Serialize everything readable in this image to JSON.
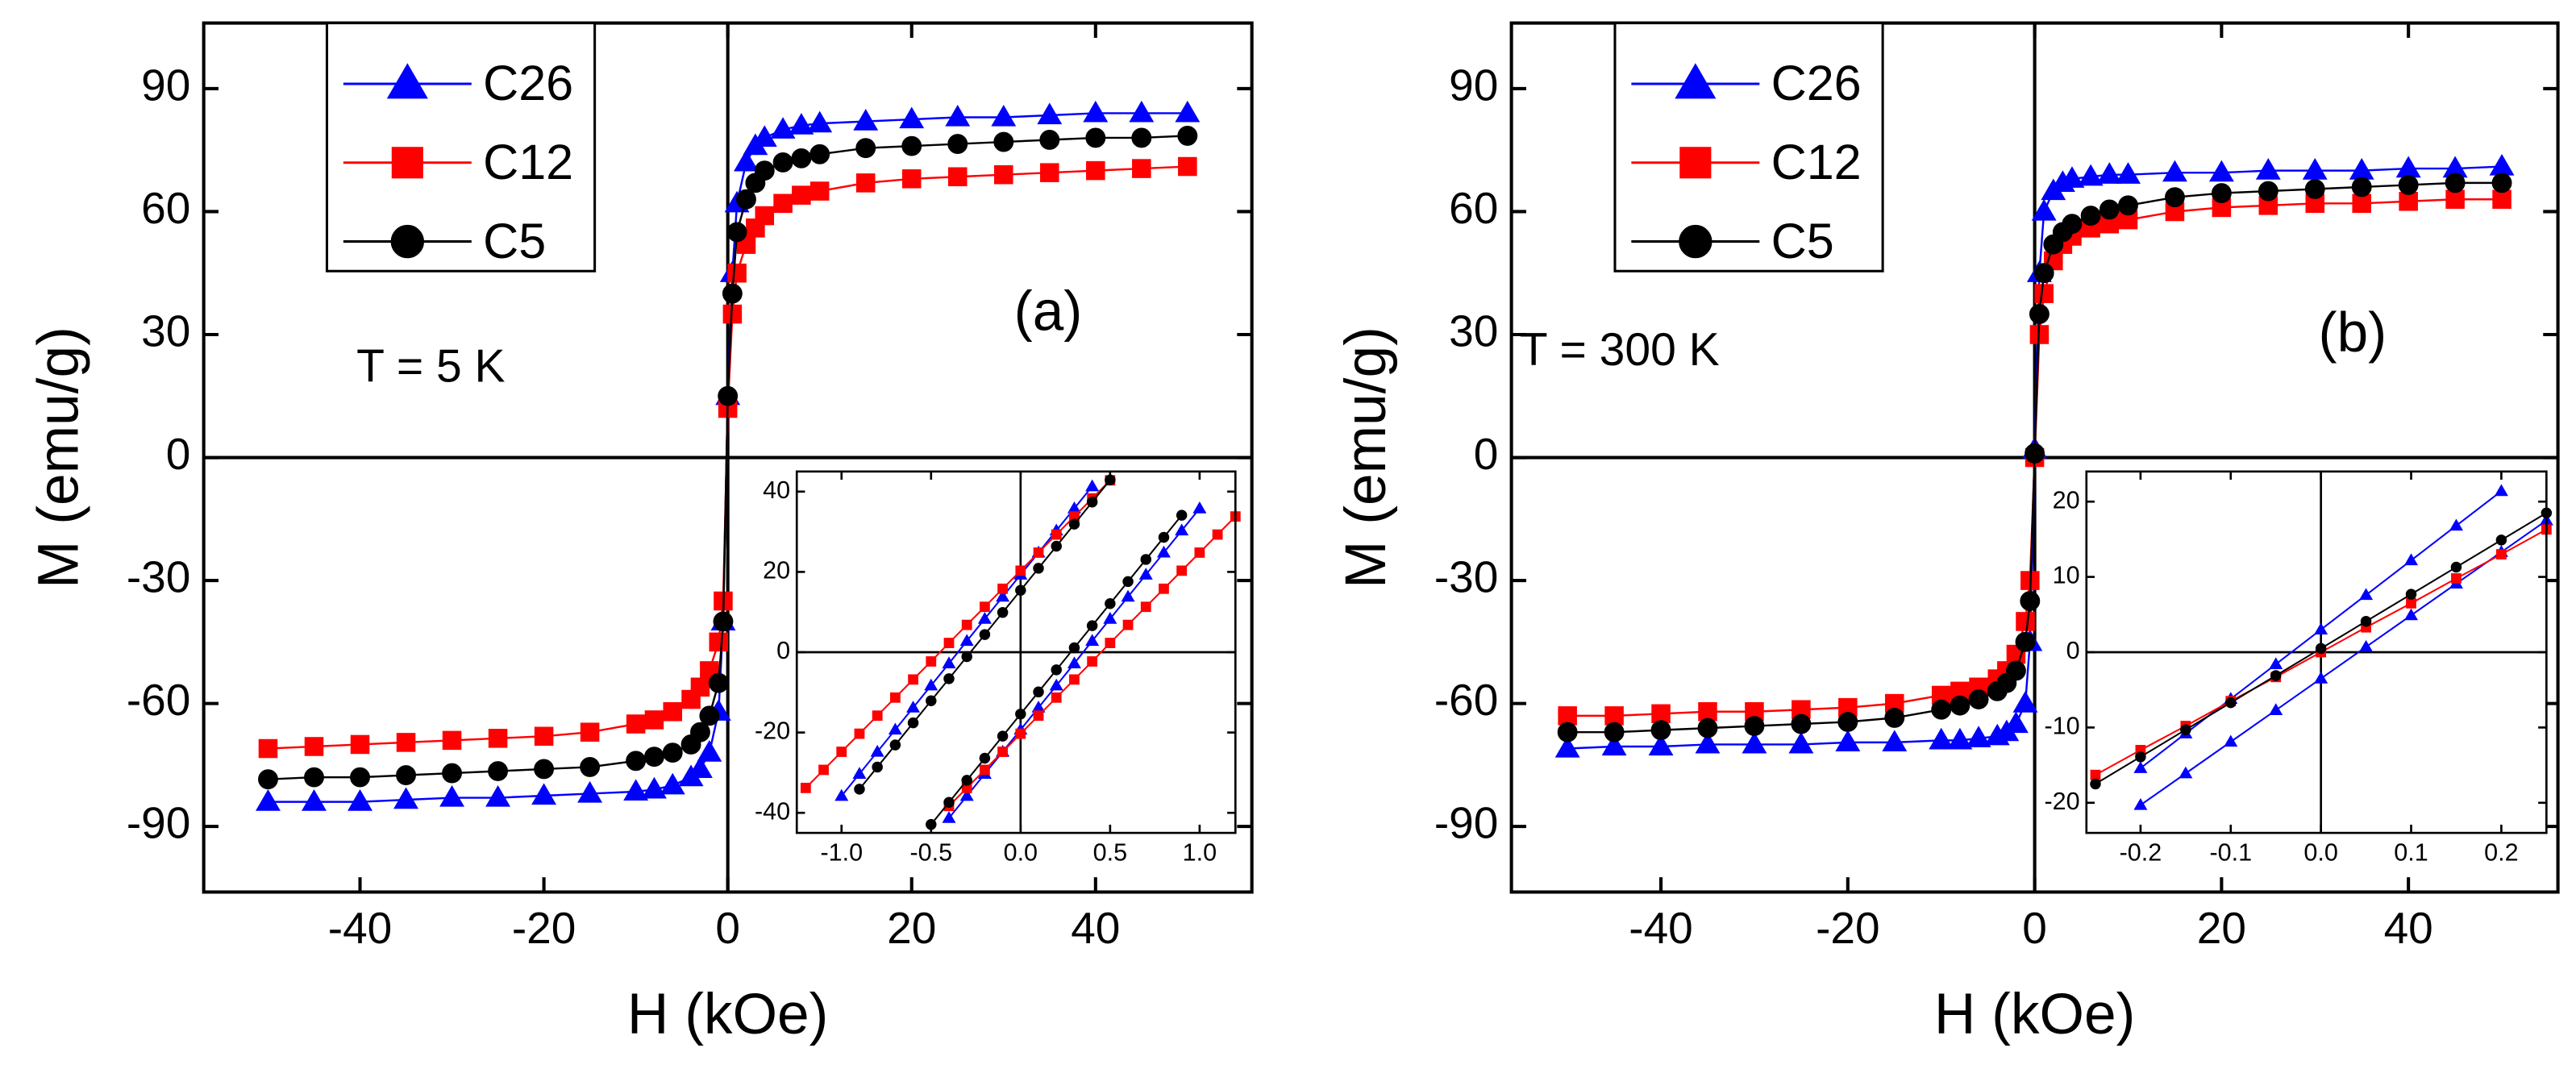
{
  "chart_data": [
    {
      "type": "scatter",
      "title": "(a)",
      "annotation": "T = 5 K",
      "x_label": "H (kOe)",
      "y_label": "M (emu/g)",
      "legend": "upper left",
      "xlim": [
        -57,
        57
      ],
      "ylim": [
        -106,
        106
      ],
      "xticks": [
        -40,
        -20,
        0,
        20,
        40
      ],
      "yticks": [
        -90,
        -60,
        -30,
        0,
        30,
        60,
        90
      ],
      "series": [
        {
          "name": "C26",
          "color": "#0000ff",
          "marker": "triangle",
          "x": [
            -50,
            -45,
            -40,
            -35,
            -30,
            -25,
            -20,
            -15,
            -10,
            -8,
            -6,
            -4,
            -3,
            -2,
            -1,
            -0.5,
            0,
            0.5,
            1,
            2,
            3,
            4,
            6,
            8,
            10,
            15,
            20,
            25,
            30,
            35,
            40,
            45,
            50
          ],
          "values": [
            -84,
            -84,
            -84,
            -83.5,
            -83,
            -83,
            -82.5,
            -82,
            -81.5,
            -81,
            -80,
            -78,
            -76,
            -72,
            -62,
            -40,
            15,
            45,
            62,
            72,
            76,
            78,
            80,
            81,
            81.5,
            82,
            82.5,
            83,
            83,
            83.5,
            84,
            84,
            84
          ]
        },
        {
          "name": "C12",
          "color": "#ff0000",
          "marker": "square",
          "x": [
            -50,
            -45,
            -40,
            -35,
            -30,
            -25,
            -20,
            -15,
            -10,
            -8,
            -6,
            -4,
            -3,
            -2,
            -1,
            -0.5,
            0,
            0.5,
            1,
            2,
            3,
            4,
            6,
            8,
            10,
            15,
            20,
            25,
            30,
            35,
            40,
            45,
            50
          ],
          "values": [
            -71,
            -70.5,
            -70,
            -69.5,
            -69,
            -68.5,
            -68,
            -67,
            -65,
            -64,
            -62,
            -59,
            -56,
            -52,
            -45,
            -35,
            12,
            35,
            45,
            52,
            56,
            59,
            62,
            64,
            65,
            67,
            68,
            68.5,
            69,
            69.5,
            70,
            70.5,
            71
          ]
        },
        {
          "name": "C5",
          "color": "#000000",
          "marker": "circle",
          "x": [
            -50,
            -45,
            -40,
            -35,
            -30,
            -25,
            -20,
            -15,
            -10,
            -8,
            -6,
            -4,
            -3,
            -2,
            -1,
            -0.5,
            0,
            0.5,
            1,
            2,
            3,
            4,
            6,
            8,
            10,
            15,
            20,
            25,
            30,
            35,
            40,
            45,
            50
          ],
          "values": [
            -78.5,
            -78,
            -78,
            -77.5,
            -77,
            -76.5,
            -76,
            -75.5,
            -74,
            -73,
            -72,
            -70,
            -67,
            -63,
            -55,
            -40,
            15,
            40,
            55,
            63,
            67,
            70,
            72,
            73,
            74,
            75.5,
            76,
            76.5,
            77,
            77.5,
            78,
            78,
            78.5
          ]
        }
      ]
    },
    {
      "type": "scatter",
      "xlim": [
        -1.25,
        1.2
      ],
      "ylim": [
        -45,
        45
      ],
      "xticks": [
        {
          "value": -1,
          "label": "-1.0"
        },
        -0.5,
        {
          "value": 0,
          "label": "0.0"
        },
        0.5,
        {
          "value": 1,
          "label": "1.0"
        }
      ],
      "yticks": [
        -40,
        -20,
        0,
        20,
        40
      ],
      "series": [
        {
          "color": "#0000ff",
          "marker": "triangle",
          "x": [
            -0.4,
            -0.3,
            -0.2,
            -0.1,
            0,
            0.1,
            0.2,
            0.3,
            0.4,
            0.5,
            0.6,
            0.7,
            0.8,
            0.9,
            1.0
          ],
          "values": [
            -41.3,
            -35.8,
            -30.3,
            -24.8,
            -19.3,
            -13.8,
            -8.3,
            -2.8,
            2.8,
            8.3,
            13.8,
            19.3,
            24.8,
            30.3,
            35.8
          ]
        },
        {
          "color": "#0000ff",
          "marker": "triangle",
          "x": [
            0.4,
            0.3,
            0.2,
            0.1,
            0,
            -0.1,
            -0.2,
            -0.3,
            -0.4,
            -0.5,
            -0.6,
            -0.7,
            -0.8,
            -0.9,
            -1.0
          ],
          "values": [
            41.3,
            35.8,
            30.3,
            24.8,
            19.3,
            13.8,
            8.3,
            2.8,
            -2.8,
            -8.3,
            -13.8,
            -19.3,
            -24.8,
            -30.3,
            -35.8
          ]
        },
        {
          "color": "#ff0000",
          "marker": "square",
          "x": [
            -0.4,
            -0.3,
            -0.2,
            -0.1,
            0,
            0.1,
            0.2,
            0.3,
            0.4,
            0.5,
            0.6,
            0.7,
            0.8,
            0.9,
            1.0,
            1.1,
            1.2
          ],
          "values": [
            -38.3,
            -33.8,
            -29.3,
            -24.8,
            -20.3,
            -15.8,
            -11.3,
            -6.8,
            -2.3,
            2.3,
            6.8,
            11.3,
            15.8,
            20.3,
            24.8,
            29.3,
            33.8
          ]
        },
        {
          "color": "#ff0000",
          "marker": "square",
          "x": [
            0.5,
            0.4,
            0.3,
            0.2,
            0.1,
            0,
            -0.1,
            -0.2,
            -0.3,
            -0.4,
            -0.5,
            -0.6,
            -0.7,
            -0.8,
            -0.9,
            -1.0,
            -1.1,
            -1.2
          ],
          "values": [
            42.8,
            38.3,
            33.8,
            29.3,
            24.8,
            20.3,
            15.8,
            11.3,
            6.8,
            2.3,
            -2.3,
            -6.8,
            -11.3,
            -15.8,
            -20.3,
            -24.8,
            -29.3,
            -33.8
          ]
        },
        {
          "color": "#000000",
          "marker": "circle",
          "x": [
            -0.5,
            -0.4,
            -0.3,
            -0.2,
            -0.1,
            0,
            0.1,
            0.2,
            0.3,
            0.4,
            0.5,
            0.6,
            0.7,
            0.8,
            0.9
          ],
          "values": [
            -42.9,
            -37.4,
            -31.9,
            -26.4,
            -20.9,
            -15.4,
            -9.9,
            -4.4,
            1.1,
            6.6,
            12.1,
            17.6,
            23.1,
            28.6,
            34.1
          ]
        },
        {
          "color": "#000000",
          "marker": "circle",
          "x": [
            0.5,
            0.4,
            0.3,
            0.2,
            0.1,
            0,
            -0.1,
            -0.2,
            -0.3,
            -0.4,
            -0.5,
            -0.6,
            -0.7,
            -0.8,
            -0.9
          ],
          "values": [
            42.9,
            37.4,
            31.9,
            26.4,
            20.9,
            15.4,
            9.9,
            4.4,
            -1.1,
            -6.6,
            -12.1,
            -17.6,
            -23.1,
            -28.6,
            -34.1
          ]
        }
      ]
    },
    {
      "type": "scatter",
      "title": "(b)",
      "annotation": "T = 300 K",
      "x_label": "H (kOe)",
      "y_label": "M (emu/g)",
      "legend": "upper left",
      "xlim": [
        -56,
        56
      ],
      "ylim": [
        -106,
        106
      ],
      "xticks": [
        -40,
        -20,
        0,
        20,
        40
      ],
      "yticks": [
        -90,
        -60,
        -30,
        0,
        30,
        60,
        90
      ],
      "series": [
        {
          "name": "C26",
          "color": "#0000ff",
          "marker": "triangle",
          "x": [
            -50,
            -45,
            -40,
            -35,
            -30,
            -25,
            -20,
            -15,
            -10,
            -8,
            -6,
            -4,
            -3,
            -2,
            -1,
            -0.5,
            0,
            0.5,
            1,
            2,
            3,
            4,
            6,
            8,
            10,
            15,
            20,
            25,
            30,
            35,
            40,
            45,
            50
          ],
          "values": [
            -71,
            -70.5,
            -70.5,
            -70,
            -70,
            -70,
            -69.5,
            -69.5,
            -69,
            -69,
            -68.5,
            -68,
            -67,
            -65,
            -60,
            -45,
            2,
            45,
            60,
            65,
            67,
            68,
            68.5,
            69,
            69,
            69.5,
            69.5,
            70,
            70,
            70,
            70.5,
            70.5,
            71
          ]
        },
        {
          "name": "C12",
          "color": "#ff0000",
          "marker": "square",
          "x": [
            -50,
            -45,
            -40,
            -35,
            -30,
            -25,
            -20,
            -15,
            -10,
            -8,
            -6,
            -4,
            -3,
            -2,
            -1,
            -0.5,
            0,
            0.5,
            1,
            2,
            3,
            4,
            6,
            8,
            10,
            15,
            20,
            25,
            30,
            35,
            40,
            45,
            50
          ],
          "values": [
            -63,
            -63,
            -62.5,
            -62,
            -62,
            -61.5,
            -61,
            -60,
            -58,
            -57,
            -56,
            -54,
            -52,
            -48,
            -40,
            -30,
            0,
            30,
            40,
            48,
            52,
            54,
            56,
            57,
            58,
            60,
            61,
            61.5,
            62,
            62,
            62.5,
            63,
            63
          ]
        },
        {
          "name": "C5",
          "color": "#000000",
          "marker": "circle",
          "x": [
            -50,
            -45,
            -40,
            -35,
            -30,
            -25,
            -20,
            -15,
            -10,
            -8,
            -6,
            -4,
            -3,
            -2,
            -1,
            -0.5,
            0,
            0.5,
            1,
            2,
            3,
            4,
            6,
            8,
            10,
            15,
            20,
            25,
            30,
            35,
            40,
            45,
            50
          ],
          "values": [
            -67,
            -67,
            -66.5,
            -66,
            -65.5,
            -65,
            -64.5,
            -63.5,
            -61.5,
            -60.5,
            -59,
            -57,
            -55,
            -52,
            -45,
            -35,
            1,
            35,
            45,
            52,
            55,
            57,
            59,
            60.5,
            61.5,
            63.5,
            64.5,
            65,
            65.5,
            66,
            66.5,
            67,
            67
          ]
        }
      ]
    },
    {
      "type": "scatter",
      "xlim": [
        -0.26,
        0.25
      ],
      "ylim": [
        -24,
        24
      ],
      "xticks": [
        -0.2,
        -0.1,
        {
          "value": 0,
          "label": "0.0"
        },
        0.1,
        0.2
      ],
      "yticks": [
        -20,
        -10,
        0,
        10,
        20
      ],
      "series": [
        {
          "color": "#0000ff",
          "marker": "triangle",
          "x": [
            -0.2,
            -0.15,
            -0.1,
            -0.05,
            0,
            0.05,
            0.1,
            0.15,
            0.2
          ],
          "values": [
            -15.4,
            -10.8,
            -6.2,
            -1.6,
            3,
            7.6,
            12.2,
            16.8,
            21.4
          ]
        },
        {
          "color": "#0000ff",
          "marker": "triangle",
          "x": [
            -0.2,
            -0.15,
            -0.1,
            -0.05,
            0,
            0.05,
            0.1,
            0.15,
            0.2,
            0.25
          ],
          "values": [
            -20.3,
            -16.1,
            -11.9,
            -7.7,
            -3.5,
            0.7,
            4.9,
            9.1,
            13.3,
            17.5
          ]
        },
        {
          "color": "#ff0000",
          "marker": "square",
          "x": [
            -0.25,
            -0.2,
            -0.15,
            -0.1,
            -0.05,
            0,
            0.05,
            0.1,
            0.15,
            0.2,
            0.25
          ],
          "values": [
            -16.3,
            -13,
            -9.8,
            -6.5,
            -3.3,
            0,
            3.3,
            6.5,
            9.8,
            13,
            16.3
          ]
        },
        {
          "color": "#000000",
          "marker": "circle",
          "x": [
            -0.25,
            -0.2,
            -0.15,
            -0.1,
            -0.05,
            0,
            0.05,
            0.1,
            0.15,
            0.2,
            0.25
          ],
          "values": [
            -17.5,
            -13.9,
            -10.3,
            -6.7,
            -3.1,
            0.5,
            4.1,
            7.7,
            11.3,
            14.9,
            18.5
          ]
        }
      ]
    }
  ]
}
